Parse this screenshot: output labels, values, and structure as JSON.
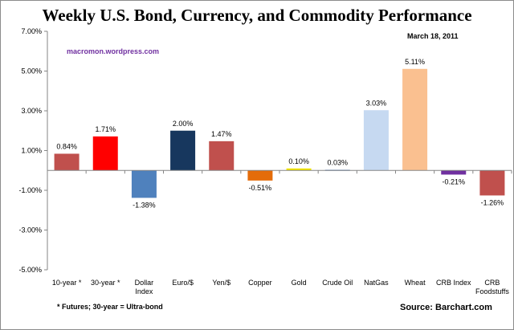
{
  "chart_data": {
    "type": "bar",
    "title": "Weekly U.S. Bond, Currency, and Commodity Performance",
    "date": "March 18, 2011",
    "watermark": "macromon.wordpress.com",
    "footnote": "* Futures; 30-year = Ultra-bond",
    "source": "Source:  Barchart.com",
    "ylim": [
      -5,
      7
    ],
    "yticks": [
      7,
      5,
      3,
      1,
      -1,
      -3,
      -5
    ],
    "ytick_labels": [
      "7.00%",
      "5.00%",
      "3.00%",
      "1.00%",
      "-1.00%",
      "-3.00%",
      "-5.00%"
    ],
    "categories": [
      [
        "10-year *"
      ],
      [
        "30-year *"
      ],
      [
        "Dollar",
        "Index"
      ],
      [
        "Euro/$"
      ],
      [
        "Yen/$"
      ],
      [
        "Copper"
      ],
      [
        "Gold"
      ],
      [
        "Crude Oil"
      ],
      [
        "NatGas"
      ],
      [
        "Wheat"
      ],
      [
        "CRB Index"
      ],
      [
        "CRB",
        "Foodstuffs"
      ]
    ],
    "values": [
      0.84,
      1.71,
      -1.38,
      2.0,
      1.47,
      -0.51,
      0.1,
      0.03,
      3.03,
      5.11,
      -0.21,
      -1.26
    ],
    "labels": [
      "0.84%",
      "1.71%",
      "-1.38%",
      "2.00%",
      "1.47%",
      "-0.51%",
      "0.10%",
      "0.03%",
      "3.03%",
      "5.11%",
      "-0.21%",
      "-1.26%"
    ],
    "colors": [
      "#c0504d",
      "#ff0000",
      "#4f81bd",
      "#17375e",
      "#c0504d",
      "#e46c0a",
      "#f2e500",
      "#4a7ebb",
      "#c6d9f1",
      "#fac090",
      "#7030a0",
      "#c0504d"
    ]
  }
}
